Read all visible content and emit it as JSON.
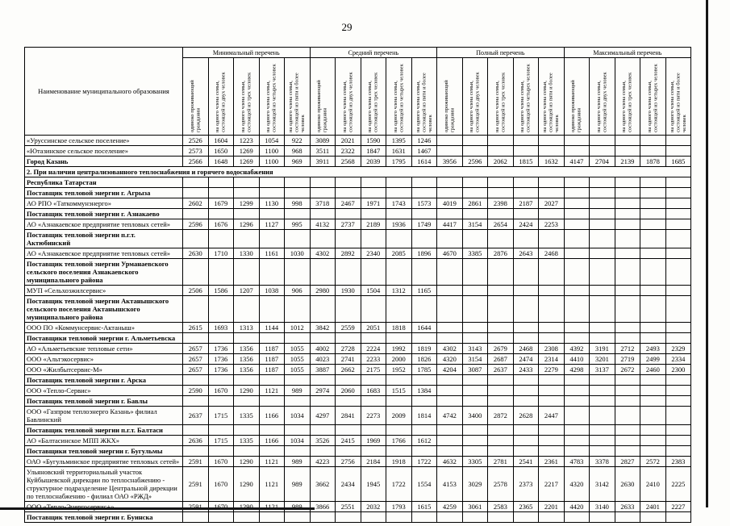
{
  "page_number": "29",
  "table": {
    "name_header": "Наименование муниципального образования",
    "groups": [
      "Минимальный перечень",
      "Средний перечень",
      "Полный перечень",
      "Максимальный перечень"
    ],
    "sub_headers": [
      "одиноко проживающий гражданин",
      "на одного члена семьи, состоящей из двух человек",
      "на одного члена семьи, состоящей из трех человек",
      "на одного члена семьи, состоящей из четырех человек",
      "на одного члена семьи, состоящей из пяти и более человек"
    ],
    "rows": [
      {
        "type": "data",
        "name": "«Уруссинское сельское поселение»",
        "min": [
          2526,
          1604,
          1223,
          1054,
          922
        ],
        "avg": [
          3089,
          2021,
          1590,
          1395,
          1246
        ],
        "full": [],
        "max": []
      },
      {
        "type": "data",
        "name": "«Ютазинское сельское поселение»",
        "min": [
          2573,
          1650,
          1269,
          1100,
          968
        ],
        "avg": [
          3511,
          2322,
          1847,
          1631,
          1467
        ],
        "full": [],
        "max": []
      },
      {
        "type": "data",
        "bold": true,
        "name": "Город Казань",
        "min": [
          2566,
          1648,
          1269,
          1100,
          969
        ],
        "avg": [
          3911,
          2568,
          2039,
          1795,
          1614
        ],
        "full": [
          3956,
          2596,
          2062,
          1815,
          1632
        ],
        "max": [
          4147,
          2704,
          2139,
          1878,
          1685
        ]
      },
      {
        "type": "section",
        "name": "2. При наличии централизованного теплоснабжения и горячего водоснабжения"
      },
      {
        "type": "group",
        "name": "Республика Татарстан"
      },
      {
        "type": "group",
        "name": "Поставщик тепловой энергии г. Агрыза"
      },
      {
        "type": "data",
        "name": "АО РПО «Таткоммунэнерго»",
        "min": [
          2602,
          1679,
          1299,
          1130,
          998
        ],
        "avg": [
          3718,
          2467,
          1971,
          1743,
          1573
        ],
        "full": [
          4019,
          2861,
          2398,
          2187,
          2027
        ],
        "max": []
      },
      {
        "type": "group",
        "name": "Поставщик тепловой энергии г. Азнакаево"
      },
      {
        "type": "data",
        "name": "АО «Азнакаевское предприятие тепловых сетей»",
        "min": [
          2596,
          1676,
          1296,
          1127,
          995
        ],
        "avg": [
          4132,
          2737,
          2189,
          1936,
          1749
        ],
        "full": [
          4417,
          3154,
          2654,
          2424,
          2253
        ],
        "max": []
      },
      {
        "type": "group",
        "name": "Поставщик тепловой энергии п.г.т. Актюбинский"
      },
      {
        "type": "data",
        "name": "АО «Азнакаевское предприятие тепловых сетей»",
        "min": [
          2630,
          1710,
          1330,
          1161,
          1030
        ],
        "avg": [
          4302,
          2892,
          2340,
          2085,
          1896
        ],
        "full": [
          4670,
          3385,
          2876,
          2643,
          2468
        ],
        "max": []
      },
      {
        "type": "group",
        "name": "Поставщик тепловой энергии Урманаевского сельского поселения Азнакаевского муниципального района"
      },
      {
        "type": "data",
        "name": "МУП «Сельхозжилсервис»",
        "min": [
          2506,
          1586,
          1207,
          1038,
          906
        ],
        "avg": [
          2980,
          1930,
          1504,
          1312,
          1165
        ],
        "full": [],
        "max": []
      },
      {
        "type": "group",
        "name": "Поставщик тепловой энергии Актанышского сельского поселения Актанышского муниципального района"
      },
      {
        "type": "data",
        "name": "ООО ПО «Коммунсервис-Актаныш»",
        "min": [
          2615,
          1693,
          1313,
          1144,
          1012
        ],
        "avg": [
          3842,
          2559,
          2051,
          1818,
          1644
        ],
        "full": [],
        "max": []
      },
      {
        "type": "group",
        "name": "Поставщики тепловой энергии г. Альметьевска"
      },
      {
        "type": "data",
        "name": "АО «Альметьевские тепловые сети»",
        "min": [
          2657,
          1736,
          1356,
          1187,
          1055
        ],
        "avg": [
          4002,
          2728,
          2224,
          1992,
          1819
        ],
        "full": [
          4302,
          3143,
          2679,
          2468,
          2308
        ],
        "max": [
          4392,
          3191,
          2712,
          2493,
          2329
        ]
      },
      {
        "type": "data",
        "name": "ООО «Альтэкосервис»",
        "min": [
          2657,
          1736,
          1356,
          1187,
          1055
        ],
        "avg": [
          4023,
          2741,
          2233,
          2000,
          1826
        ],
        "full": [
          4320,
          3154,
          2687,
          2474,
          2314
        ],
        "max": [
          4410,
          3201,
          2719,
          2499,
          2334
        ]
      },
      {
        "type": "data",
        "name": "ООО «Жилбытсервис-М»",
        "min": [
          2657,
          1736,
          1356,
          1187,
          1055
        ],
        "avg": [
          3887,
          2662,
          2175,
          1952,
          1785
        ],
        "full": [
          4204,
          3087,
          2637,
          2433,
          2279
        ],
        "max": [
          4298,
          3137,
          2672,
          2460,
          2300
        ]
      },
      {
        "type": "group",
        "name": "Поставщик тепловой энергии г. Арска"
      },
      {
        "type": "data",
        "name": "ООО «Тепло-Сервис»",
        "min": [
          2590,
          1670,
          1290,
          1121,
          989
        ],
        "avg": [
          2974,
          2060,
          1683,
          1515,
          1384
        ],
        "full": [],
        "max": []
      },
      {
        "type": "group",
        "name": "Поставщик тепловой энергии г. Бавлы"
      },
      {
        "type": "data",
        "name": "ООО «Газпром теплоэнерго Казань» филиал Бавлинский",
        "min": [
          2637,
          1715,
          1335,
          1166,
          1034
        ],
        "avg": [
          4297,
          2841,
          2273,
          2009,
          1814
        ],
        "full": [
          4742,
          3400,
          2872,
          2628,
          2447
        ],
        "max": []
      },
      {
        "type": "group",
        "name": "Поставщик тепловой энергии п.г.т. Балтаси"
      },
      {
        "type": "data",
        "name": "АО «Балтасинское МПП ЖКХ»",
        "min": [
          2636,
          1715,
          1335,
          1166,
          1034
        ],
        "avg": [
          3526,
          2415,
          1969,
          1766,
          1612
        ],
        "full": [],
        "max": []
      },
      {
        "type": "group",
        "name": "Поставщики тепловой энергии г. Бугульмы"
      },
      {
        "type": "data",
        "name": "ОАО «Бугульминское предприятие тепловых сетей»",
        "min": [
          2591,
          1670,
          1290,
          1121,
          989
        ],
        "avg": [
          4223,
          2756,
          2184,
          1918,
          1722
        ],
        "full": [
          4632,
          3305,
          2781,
          2541,
          2361
        ],
        "max": [
          4783,
          3378,
          2827,
          2572,
          2383
        ]
      },
      {
        "type": "data",
        "name": "Ульяновский территориальный участок Куйбышевской дирекции по теплоснабжению - структурное подразделение Центральной дирекции по теплоснабжению - филиал ОАО «РЖД»",
        "min": [
          2591,
          1670,
          1290,
          1121,
          989
        ],
        "avg": [
          3662,
          2434,
          1945,
          1722,
          1554
        ],
        "full": [
          4153,
          3029,
          2578,
          2373,
          2217
        ],
        "max": [
          4320,
          3142,
          2630,
          2410,
          2225
        ]
      },
      {
        "type": "data",
        "name": "ООО «Тепло-Энергосервис+»",
        "min": [
          2591,
          1670,
          1290,
          1121,
          989
        ],
        "avg": [
          3866,
          2551,
          2032,
          1793,
          1615
        ],
        "full": [
          4259,
          3061,
          2583,
          2365,
          2201
        ],
        "max": [
          4420,
          3140,
          2633,
          2401,
          2227
        ]
      },
      {
        "type": "group",
        "name": "Поставщик тепловой энергии г. Буинска"
      }
    ]
  }
}
